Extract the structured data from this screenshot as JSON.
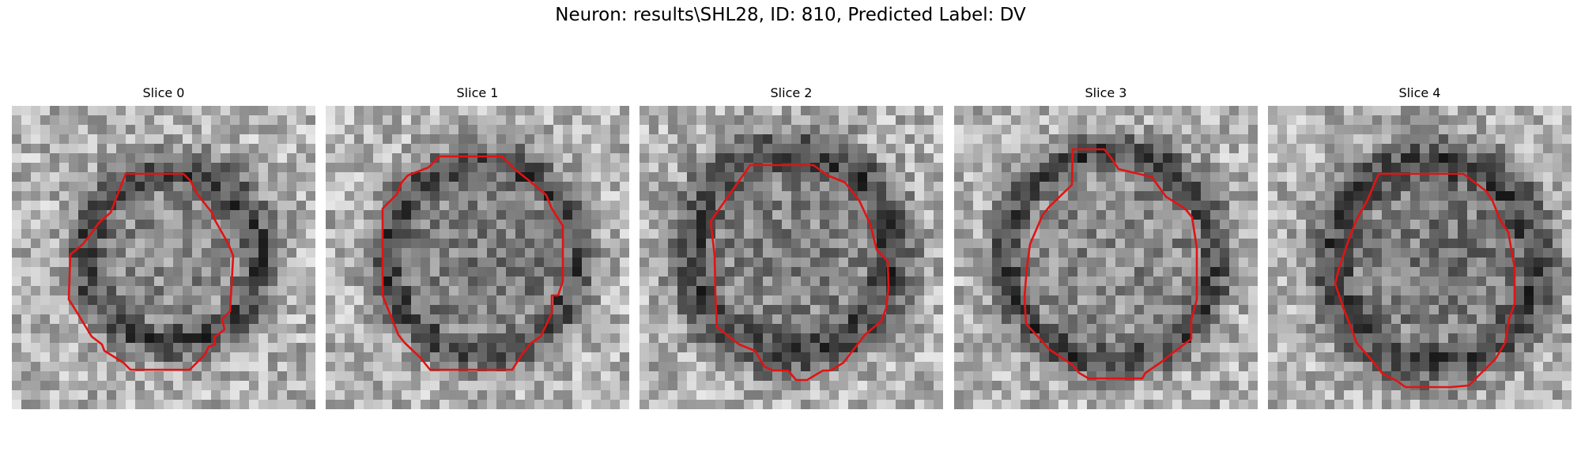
{
  "figure": {
    "title": "Neuron: results\\SHL28, ID: 810, Predicted Label: DV"
  },
  "colors": {
    "contour": "#e21313",
    "background": "#ffffff"
  },
  "slices": [
    {
      "label": "Slice 0"
    },
    {
      "label": "Slice 1"
    },
    {
      "label": "Slice 2"
    },
    {
      "label": "Slice 3"
    },
    {
      "label": "Slice 4"
    }
  ]
}
